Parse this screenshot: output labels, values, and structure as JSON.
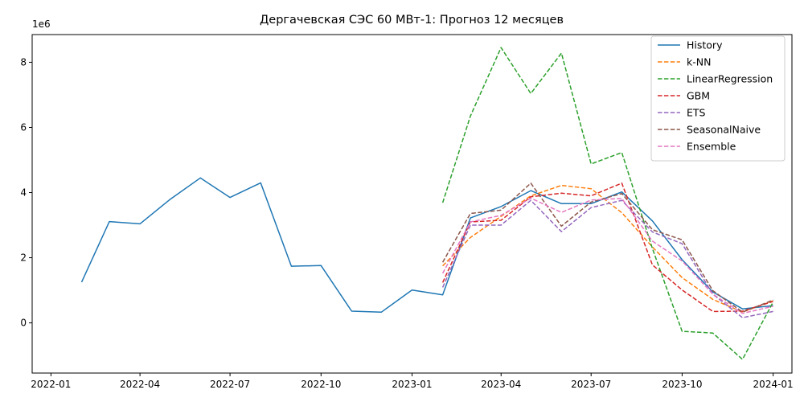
{
  "chart_data": {
    "type": "line",
    "title": "Дергачевская СЭС 60 МВт-1: Прогноз 12 месяцев",
    "xlabel": "",
    "ylabel": "",
    "y_offset_label": "1e6",
    "x_ticks": [
      "2022-01",
      "2022-04",
      "2022-07",
      "2022-10",
      "2023-01",
      "2023-04",
      "2023-07",
      "2023-10",
      "2024-01"
    ],
    "y_ticks": [
      "0",
      "2",
      "4",
      "6",
      "8"
    ],
    "xlim": [
      "2021-12-13",
      "2024-01-20"
    ],
    "ylim": [
      -1540000,
      8850000
    ],
    "grid": false,
    "legend_position": "top-right",
    "series": [
      {
        "name": "History",
        "color": "#1f77b4",
        "style": "solid",
        "x": [
          "2022-02-01",
          "2022-03-01",
          "2022-04-01",
          "2022-05-01",
          "2022-06-01",
          "2022-07-01",
          "2022-08-01",
          "2022-09-01",
          "2022-10-01",
          "2022-11-01",
          "2022-12-01",
          "2023-01-01",
          "2023-02-01",
          "2023-03-01",
          "2023-04-01",
          "2023-05-01",
          "2023-06-01",
          "2023-07-01",
          "2023-08-01",
          "2023-09-01",
          "2023-10-01",
          "2023-11-01",
          "2023-12-01",
          "2024-01-01"
        ],
        "y": [
          1250000,
          3110000,
          3040000,
          3780000,
          4450000,
          3850000,
          4300000,
          1740000,
          1760000,
          360000,
          330000,
          1010000,
          860000,
          3220000,
          3570000,
          4060000,
          3660000,
          3660000,
          4020000,
          3130000,
          1940000,
          950000,
          430000,
          530000
        ]
      },
      {
        "name": "k-NN",
        "color": "#ff7f0e",
        "style": "dashed",
        "x": [
          "2023-02-01",
          "2023-03-01",
          "2023-04-01",
          "2023-05-01",
          "2023-06-01",
          "2023-07-01",
          "2023-08-01",
          "2023-09-01",
          "2023-10-01",
          "2023-11-01",
          "2023-12-01",
          "2024-01-01"
        ],
        "y": [
          1750000,
          2620000,
          3270000,
          3900000,
          4220000,
          4120000,
          3380000,
          2330000,
          1390000,
          720000,
          330000,
          680000
        ]
      },
      {
        "name": "LinearRegression",
        "color": "#2ca02c",
        "style": "dashed",
        "x": [
          "2023-02-01",
          "2023-03-01",
          "2023-04-01",
          "2023-05-01",
          "2023-06-01",
          "2023-07-01",
          "2023-08-01",
          "2023-09-01",
          "2023-10-01",
          "2023-11-01",
          "2023-12-01",
          "2024-01-01"
        ],
        "y": [
          3690000,
          6350000,
          8450000,
          7040000,
          8280000,
          4880000,
          5230000,
          2280000,
          -260000,
          -310000,
          -1120000,
          640000
        ]
      },
      {
        "name": "GBM",
        "color": "#d62728",
        "style": "dashed",
        "x": [
          "2023-02-01",
          "2023-03-01",
          "2023-04-01",
          "2023-05-01",
          "2023-06-01",
          "2023-07-01",
          "2023-08-01",
          "2023-09-01",
          "2023-10-01",
          "2023-11-01",
          "2023-12-01",
          "2024-01-01"
        ],
        "y": [
          1240000,
          3100000,
          3150000,
          3870000,
          3980000,
          3900000,
          4290000,
          1780000,
          1010000,
          350000,
          360000,
          660000
        ]
      },
      {
        "name": "ETS",
        "color": "#9467bd",
        "style": "dashed",
        "x": [
          "2023-02-01",
          "2023-03-01",
          "2023-04-01",
          "2023-05-01",
          "2023-06-01",
          "2023-07-01",
          "2023-08-01",
          "2023-09-01",
          "2023-10-01",
          "2023-11-01",
          "2023-12-01",
          "2024-01-01"
        ],
        "y": [
          1090000,
          3000000,
          3000000,
          3760000,
          2800000,
          3540000,
          3760000,
          2790000,
          2430000,
          880000,
          160000,
          350000
        ]
      },
      {
        "name": "SeasonalNaive",
        "color": "#8c564b",
        "style": "dashed",
        "x": [
          "2023-02-01",
          "2023-03-01",
          "2023-04-01",
          "2023-05-01",
          "2023-06-01",
          "2023-07-01",
          "2023-08-01",
          "2023-09-01",
          "2023-10-01",
          "2023-11-01",
          "2023-12-01",
          "2024-01-01"
        ],
        "y": [
          1860000,
          3360000,
          3460000,
          4290000,
          2970000,
          3710000,
          3970000,
          2860000,
          2550000,
          990000,
          330000,
          700000
        ]
      },
      {
        "name": "Ensemble",
        "color": "#e377c2",
        "style": "dashed",
        "x": [
          "2023-02-01",
          "2023-03-01",
          "2023-04-01",
          "2023-05-01",
          "2023-06-01",
          "2023-07-01",
          "2023-08-01",
          "2023-09-01",
          "2023-10-01",
          "2023-11-01",
          "2023-12-01",
          "2024-01-01"
        ],
        "y": [
          1520000,
          3100000,
          3300000,
          3830000,
          3390000,
          3770000,
          3820000,
          2510000,
          1900000,
          880000,
          290000,
          510000
        ]
      }
    ]
  }
}
